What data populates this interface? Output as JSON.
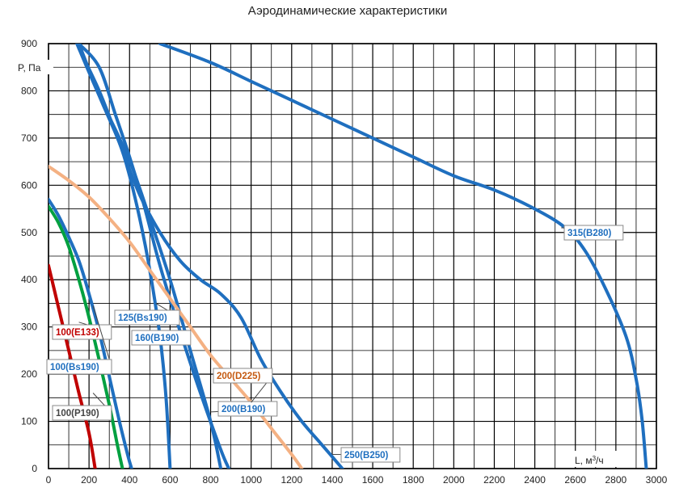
{
  "chart_data": {
    "type": "line",
    "title": "Аэродинамические характеристики",
    "xlabel": "L, м",
    "xlabel_sup": "3",
    "xlabel_unit": "/ч",
    "ylabel": "P, Па",
    "xlim": [
      0,
      3000
    ],
    "ylim": [
      0,
      900
    ],
    "x_ticks": [
      0,
      200,
      400,
      600,
      800,
      1000,
      1200,
      1400,
      1600,
      1800,
      2000,
      2200,
      2400,
      2600,
      2800,
      3000
    ],
    "y_ticks": [
      0,
      100,
      200,
      300,
      400,
      500,
      600,
      700,
      800,
      900
    ],
    "grid": true,
    "series": [
      {
        "name": "100(E133)",
        "color": "#c00000",
        "label_color": "#c00000",
        "points": [
          [
            0,
            430
          ],
          [
            50,
            340
          ],
          [
            100,
            250
          ],
          [
            150,
            160
          ],
          [
            200,
            75
          ],
          [
            230,
            0
          ]
        ]
      },
      {
        "name": "100(P190)",
        "color": "#00a040",
        "label_color": "#444444",
        "points": [
          [
            0,
            555
          ],
          [
            50,
            520
          ],
          [
            100,
            470
          ],
          [
            150,
            400
          ],
          [
            200,
            320
          ],
          [
            250,
            230
          ],
          [
            300,
            135
          ],
          [
            340,
            50
          ],
          [
            365,
            0
          ]
        ]
      },
      {
        "name": "100(Bs190)",
        "color": "#1f6fbf",
        "label_color": "#1f6fbf",
        "points": [
          [
            0,
            570
          ],
          [
            50,
            535
          ],
          [
            100,
            490
          ],
          [
            150,
            440
          ],
          [
            200,
            370
          ],
          [
            250,
            290
          ],
          [
            300,
            195
          ],
          [
            350,
            100
          ],
          [
            390,
            30
          ],
          [
            410,
            0
          ]
        ]
      },
      {
        "name": "125(Bs190)",
        "color": "#1f6fbf",
        "label_color": "#1f6fbf",
        "points": [
          [
            150,
            900
          ],
          [
            250,
            790
          ],
          [
            350,
            690
          ],
          [
            400,
            620
          ],
          [
            450,
            530
          ],
          [
            500,
            420
          ],
          [
            550,
            280
          ],
          [
            580,
            150
          ],
          [
            600,
            0
          ]
        ]
      },
      {
        "name": "160(B190)",
        "color": "#1f6fbf",
        "label_color": "#1f6fbf",
        "points": [
          [
            140,
            900
          ],
          [
            250,
            790
          ],
          [
            350,
            700
          ],
          [
            420,
            630
          ],
          [
            500,
            530
          ],
          [
            600,
            400
          ],
          [
            700,
            250
          ],
          [
            800,
            100
          ],
          [
            850,
            0
          ]
        ]
      },
      {
        "name": "200(B190)",
        "color": "#1f6fbf",
        "label_color": "#1f6fbf",
        "points": [
          [
            150,
            900
          ],
          [
            250,
            850
          ],
          [
            330,
            750
          ],
          [
            400,
            660
          ],
          [
            470,
            560
          ],
          [
            550,
            430
          ],
          [
            650,
            290
          ],
          [
            750,
            160
          ],
          [
            850,
            40
          ],
          [
            890,
            0
          ]
        ]
      },
      {
        "name": "200(D225)",
        "color": "#f4b183",
        "label_color": "#c55a11",
        "points": [
          [
            0,
            640
          ],
          [
            100,
            610
          ],
          [
            200,
            575
          ],
          [
            300,
            530
          ],
          [
            400,
            480
          ],
          [
            500,
            420
          ],
          [
            600,
            360
          ],
          [
            700,
            300
          ],
          [
            800,
            240
          ],
          [
            900,
            190
          ],
          [
            1000,
            140
          ],
          [
            1100,
            85
          ],
          [
            1200,
            30
          ],
          [
            1250,
            0
          ]
        ]
      },
      {
        "name": "250(B250)",
        "color": "#1f6fbf",
        "label_color": "#1f6fbf",
        "points": [
          [
            150,
            890
          ],
          [
            250,
            800
          ],
          [
            350,
            690
          ],
          [
            450,
            580
          ],
          [
            550,
            500
          ],
          [
            650,
            440
          ],
          [
            750,
            400
          ],
          [
            850,
            370
          ],
          [
            950,
            320
          ],
          [
            1050,
            230
          ],
          [
            1150,
            160
          ],
          [
            1250,
            100
          ],
          [
            1350,
            50
          ],
          [
            1450,
            0
          ]
        ]
      },
      {
        "name": "315(B280)",
        "color": "#1f6fbf",
        "label_color": "#1f6fbf",
        "points": [
          [
            550,
            900
          ],
          [
            800,
            860
          ],
          [
            1000,
            820
          ],
          [
            1200,
            780
          ],
          [
            1400,
            740
          ],
          [
            1600,
            700
          ],
          [
            1800,
            660
          ],
          [
            2000,
            620
          ],
          [
            2200,
            590
          ],
          [
            2400,
            550
          ],
          [
            2550,
            510
          ],
          [
            2650,
            460
          ],
          [
            2750,
            380
          ],
          [
            2850,
            280
          ],
          [
            2900,
            190
          ],
          [
            2930,
            100
          ],
          [
            2950,
            0
          ]
        ]
      }
    ],
    "annotations": [
      {
        "text": "100(E133)",
        "series": "100(E133)",
        "at": [
          150,
          310
        ],
        "label_at": [
          65,
          402
        ]
      },
      {
        "text": "100(P190)",
        "series": "100(P190)",
        "at": [
          220,
          160
        ],
        "label_at": [
          65,
          502
        ]
      },
      {
        "text": "100(Bs190)",
        "series": "100(Bs190)",
        "at": [
          220,
          345
        ],
        "label_at": [
          58,
          445
        ]
      },
      {
        "text": "125(Bs190)",
        "series": "125(Bs190)",
        "at": [
          530,
          350
        ],
        "label_at": [
          142,
          384
        ]
      },
      {
        "text": "160(B190)",
        "series": "160(B190)",
        "at": [
          690,
          275
        ],
        "label_at": [
          163,
          409
        ]
      },
      {
        "text": "200(B190)",
        "series": "200(B190)",
        "at": [
          800,
          120
        ],
        "label_at": [
          270,
          497
        ]
      },
      {
        "text": "200(D225)",
        "series": "200(D225)",
        "at": [
          1000,
          140
        ],
        "label_at": [
          264,
          456
        ]
      },
      {
        "text": "250(B250)",
        "series": "250(B250)",
        "at": [
          1400,
          30
        ],
        "label_at": [
          422,
          554
        ]
      },
      {
        "text": "315(B280)",
        "series": "315(B280)",
        "at": [
          2530,
          510
        ],
        "label_at": [
          698,
          279
        ]
      }
    ]
  }
}
